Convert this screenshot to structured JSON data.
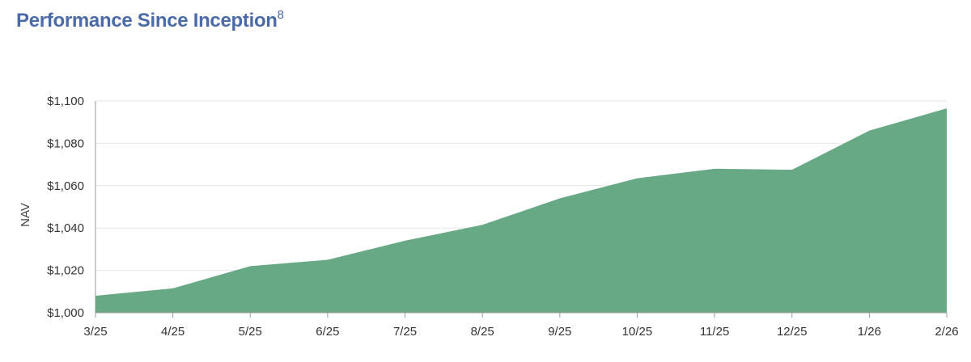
{
  "header": {
    "title": "Performance Since Inception",
    "footnote": "8"
  },
  "colors": {
    "title": "#4a6aa8",
    "area": "#67a885",
    "grid": "#e6e6e6",
    "axis": "#999999"
  },
  "chart_data": {
    "type": "area",
    "title": "Performance Since Inception",
    "xlabel": "",
    "ylabel": "NAV",
    "categories": [
      "3/25",
      "4/25",
      "5/25",
      "6/25",
      "7/25",
      "8/25",
      "9/25",
      "10/25",
      "11/25",
      "12/25",
      "1/26",
      "2/26"
    ],
    "series": [
      {
        "values": [
          1008,
          1011.5,
          1022,
          1025,
          1034,
          1041.5,
          1054,
          1063.5,
          1068,
          1067.5,
          1086,
          1096.5
        ]
      }
    ],
    "ylim": [
      1000,
      1100
    ],
    "yticks": [
      1000,
      1020,
      1040,
      1060,
      1080,
      1100
    ],
    "ytick_labels": [
      "$1,000",
      "$1,020",
      "$1,040",
      "$1,060",
      "$1,080",
      "$1,100"
    ],
    "grid": true,
    "legend": "none"
  }
}
